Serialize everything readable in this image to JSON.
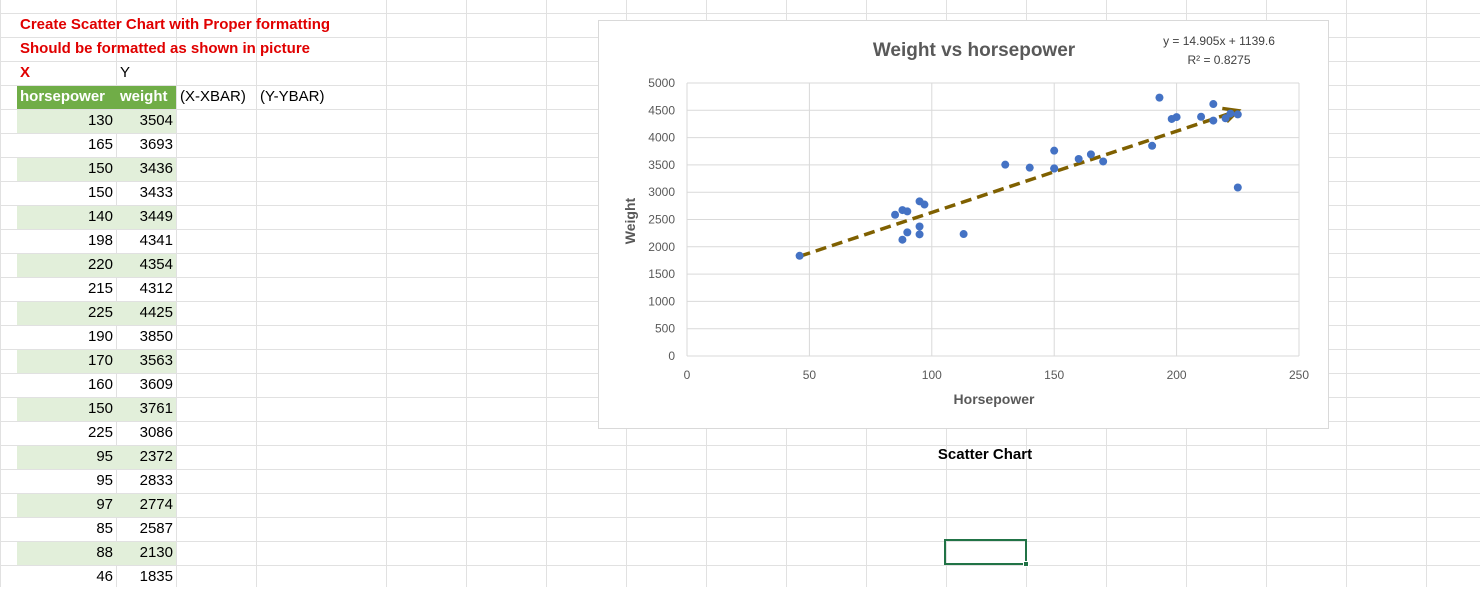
{
  "sheet": {
    "notes": [
      "Create Scatter Chart with Proper formatting",
      "Should be formatted as shown in picture"
    ],
    "label_x": "X",
    "label_y": "Y",
    "headers": [
      "horsepower",
      "weight",
      "(X-XBAR)",
      "(Y-YBAR)"
    ],
    "rows": [
      [
        "130",
        "3504"
      ],
      [
        "165",
        "3693"
      ],
      [
        "150",
        "3436"
      ],
      [
        "150",
        "3433"
      ],
      [
        "140",
        "3449"
      ],
      [
        "198",
        "4341"
      ],
      [
        "220",
        "4354"
      ],
      [
        "215",
        "4312"
      ],
      [
        "225",
        "4425"
      ],
      [
        "190",
        "3850"
      ],
      [
        "170",
        "3563"
      ],
      [
        "160",
        "3609"
      ],
      [
        "150",
        "3761"
      ],
      [
        "225",
        "3086"
      ],
      [
        "95",
        "2372"
      ],
      [
        "95",
        "2833"
      ],
      [
        "97",
        "2774"
      ],
      [
        "85",
        "2587"
      ],
      [
        "88",
        "2130"
      ],
      [
        "46",
        "1835"
      ]
    ],
    "chart_caption": "Scatter Chart",
    "colors": {
      "header_green": "#70ad47",
      "band_green": "#e2efda",
      "note_red": "#e00000",
      "selection": "#217346"
    }
  },
  "chart_data": {
    "type": "scatter",
    "title": "Weight vs horsepower",
    "xlabel": "Horsepower",
    "ylabel": "Weight",
    "xlim": [
      0,
      250
    ],
    "ylim": [
      0,
      5000
    ],
    "xticks": [
      0,
      50,
      100,
      150,
      200,
      250
    ],
    "yticks": [
      0,
      500,
      1000,
      1500,
      2000,
      2500,
      3000,
      3500,
      4000,
      4500,
      5000
    ],
    "grid": true,
    "equation": "y = 14.905x + 1139.6",
    "r2": "R² = 0.8275",
    "trendline": {
      "slope": 14.905,
      "intercept": 1139.6,
      "x_range": [
        46,
        225
      ],
      "color": "#7f6000",
      "style": "dashed"
    },
    "point_color": "#4472c4",
    "points": [
      [
        130,
        3504
      ],
      [
        165,
        3693
      ],
      [
        150,
        3436
      ],
      [
        150,
        3433
      ],
      [
        140,
        3449
      ],
      [
        198,
        4341
      ],
      [
        220,
        4354
      ],
      [
        215,
        4312
      ],
      [
        225,
        4425
      ],
      [
        190,
        3850
      ],
      [
        170,
        3563
      ],
      [
        160,
        3609
      ],
      [
        150,
        3761
      ],
      [
        225,
        3086
      ],
      [
        95,
        2372
      ],
      [
        95,
        2833
      ],
      [
        97,
        2774
      ],
      [
        85,
        2587
      ],
      [
        88,
        2130
      ],
      [
        46,
        1835
      ],
      [
        193,
        4732
      ],
      [
        215,
        4615
      ],
      [
        200,
        4376
      ],
      [
        210,
        4382
      ],
      [
        222,
        4440
      ],
      [
        88,
        2672
      ],
      [
        90,
        2648
      ],
      [
        90,
        2264
      ],
      [
        95,
        2228
      ],
      [
        113,
        2234
      ]
    ]
  }
}
